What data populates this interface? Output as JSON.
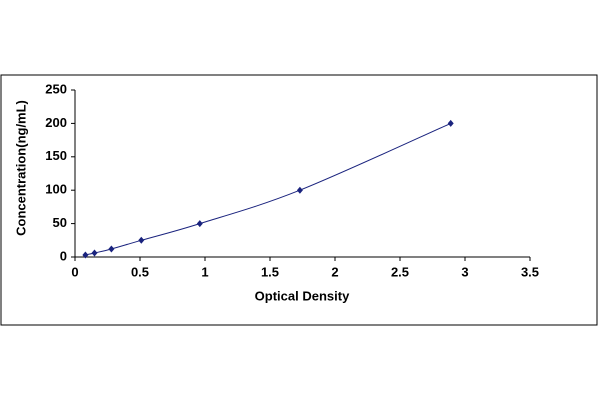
{
  "chart_data": {
    "type": "scatter",
    "x_label": "Optical Density",
    "y_label": "Concentration(ng/mL)",
    "x": [
      0.08,
      0.15,
      0.28,
      0.51,
      0.96,
      1.73,
      2.89
    ],
    "series": [
      {
        "color": "#1a237e",
        "values": [
          3,
          6,
          12,
          25,
          50,
          100,
          200
        ]
      }
    ],
    "smooth_line": true,
    "xlim": [
      0,
      3.5
    ],
    "xticks": [
      0,
      0.5,
      1,
      1.5,
      2,
      2.5,
      3,
      3.5
    ],
    "ylim": [
      0,
      250
    ],
    "yticks": [
      0,
      50,
      100,
      150,
      200,
      250
    ],
    "grid": false
  }
}
